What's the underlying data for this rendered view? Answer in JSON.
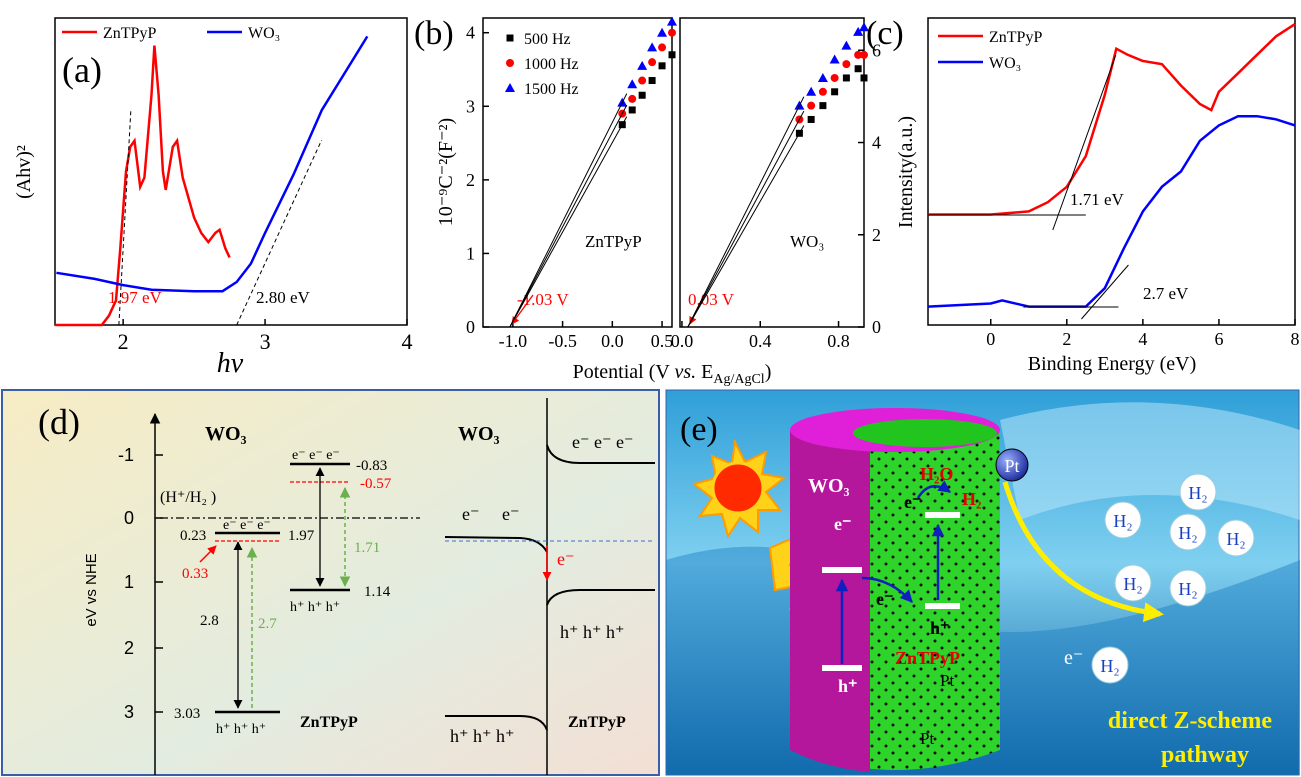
{
  "chart_data": [
    {
      "type": "line",
      "label": "(a)",
      "xlabel": "hv",
      "ylabel": "(Ahv)²",
      "xlim": [
        1.52,
        4.0
      ],
      "ylim": [
        0,
        1
      ],
      "xticks": [
        2,
        3,
        4
      ],
      "legend": "upper left",
      "series": [
        {
          "name": "ZnTPyP",
          "color": "#ff0000",
          "x": [
            1.52,
            1.85,
            1.9,
            1.95,
            1.98,
            2.02,
            2.05,
            2.08,
            2.12,
            2.15,
            2.2,
            2.22,
            2.25,
            2.28,
            2.3,
            2.35,
            2.38,
            2.42,
            2.5,
            2.55,
            2.6,
            2.65,
            2.68,
            2.72,
            2.75
          ],
          "values": [
            0.0,
            0.0,
            0.03,
            0.08,
            0.25,
            0.5,
            0.58,
            0.6,
            0.45,
            0.48,
            0.75,
            0.91,
            0.75,
            0.5,
            0.44,
            0.58,
            0.6,
            0.48,
            0.35,
            0.3,
            0.27,
            0.3,
            0.31,
            0.25,
            0.22
          ]
        },
        {
          "name": "WO₃",
          "color": "#0000ff",
          "x": [
            1.53,
            1.8,
            2.0,
            2.2,
            2.5,
            2.7,
            2.8,
            2.9,
            3.0,
            3.2,
            3.4,
            3.6,
            3.72
          ],
          "values": [
            0.17,
            0.15,
            0.13,
            0.115,
            0.11,
            0.11,
            0.14,
            0.2,
            0.3,
            0.49,
            0.7,
            0.85,
            0.94
          ]
        }
      ],
      "annotations": [
        {
          "value": 1.97,
          "label": "1.97 eV",
          "color": "#ff0000"
        },
        {
          "value": 2.8,
          "label": "2.80 eV",
          "color": "#000000"
        }
      ]
    },
    {
      "type": "scatter",
      "label": "(b)",
      "ylabel": "10⁻⁹C⁻²(F⁻²)",
      "xlabel_parts": [
        "Potential (V ",
        "vs.",
        " E",
        "Ag/AgCl",
        ")"
      ],
      "xlim": [
        -1.3,
        0.6
      ],
      "ylim": [
        0,
        4.2
      ],
      "xticks": [
        {
          "value": -1.0,
          "label": "-1.0"
        },
        -0.5,
        {
          "value": 0.0,
          "label": "0.0"
        },
        0.5
      ],
      "yticks": [
        0,
        1,
        2,
        3,
        4
      ],
      "yaxis_side": "left",
      "legend": "upper left",
      "series": [
        {
          "name": "500 Hz",
          "color": "#000000",
          "marker": "square",
          "x": [
            0.1,
            0.2,
            0.3,
            0.4,
            0.5,
            0.6
          ],
          "values": [
            2.75,
            2.95,
            3.15,
            3.35,
            3.55,
            3.7
          ]
        },
        {
          "name": "1000 Hz",
          "color": "#ff0000",
          "marker": "circle",
          "x": [
            0.1,
            0.2,
            0.3,
            0.4,
            0.5,
            0.6
          ],
          "values": [
            2.9,
            3.1,
            3.35,
            3.6,
            3.8,
            4.0
          ]
        },
        {
          "name": "1500 Hz",
          "color": "#0000ff",
          "marker": "triangle",
          "x": [
            0.1,
            0.2,
            0.3,
            0.4,
            0.5,
            0.6
          ],
          "values": [
            3.05,
            3.3,
            3.55,
            3.8,
            4.0,
            4.15
          ]
        }
      ],
      "annotations": [
        {
          "value": -1.03,
          "label": "-1.03 V",
          "color": "#ff0000"
        },
        {
          "label": "ZnTPyP",
          "color": "#000000"
        }
      ]
    },
    {
      "type": "scatter",
      "xlim": [
        -0.01,
        0.93
      ],
      "ylim": [
        0,
        6.7
      ],
      "xticks": [
        {
          "value": 0.0,
          "label": "0.0"
        },
        0.4,
        0.8
      ],
      "yticks": [
        0,
        2,
        4,
        6
      ],
      "yaxis_side": "right",
      "series": [
        {
          "color": "#000000",
          "marker": "square",
          "x": [
            0.6,
            0.66,
            0.72,
            0.78,
            0.84,
            0.9,
            0.93
          ],
          "values": [
            4.2,
            4.5,
            4.8,
            5.1,
            5.4,
            5.6,
            5.4
          ]
        },
        {
          "color": "#ff0000",
          "marker": "circle",
          "x": [
            0.6,
            0.66,
            0.72,
            0.78,
            0.84,
            0.9,
            0.93
          ],
          "values": [
            4.5,
            4.8,
            5.1,
            5.4,
            5.7,
            5.9,
            5.9
          ]
        },
        {
          "color": "#0000ff",
          "marker": "triangle",
          "x": [
            0.6,
            0.66,
            0.72,
            0.78,
            0.84,
            0.9,
            0.93
          ],
          "values": [
            4.8,
            5.1,
            5.4,
            5.8,
            6.1,
            6.4,
            6.5
          ]
        }
      ],
      "annotations": [
        {
          "value": 0.03,
          "label": "0.03 V",
          "color": "#ff0000"
        },
        {
          "label": "WO₃",
          "color": "#000000"
        }
      ]
    },
    {
      "type": "line",
      "label": "(c)",
      "xlabel": "Binding Energy (eV)",
      "ylabel": "Intensity(a.u.)",
      "xlim": [
        -1.65,
        8.0
      ],
      "ylim": [
        0,
        1
      ],
      "xticks": [
        0,
        2,
        4,
        6,
        8
      ],
      "legend": "upper left",
      "series": [
        {
          "name": "ZnTPyP",
          "color": "#ff0000",
          "x": [
            -1.65,
            0,
            1.0,
            1.5,
            2.0,
            2.5,
            3.0,
            3.3,
            3.6,
            4.0,
            4.5,
            5.0,
            5.5,
            5.8,
            6.0,
            6.5,
            7.0,
            7.5,
            8.0
          ],
          "values": [
            0.36,
            0.36,
            0.37,
            0.4,
            0.45,
            0.55,
            0.75,
            0.9,
            0.88,
            0.86,
            0.85,
            0.78,
            0.72,
            0.7,
            0.76,
            0.82,
            0.88,
            0.94,
            0.98
          ]
        },
        {
          "name": "WO₃",
          "color": "#0000ff",
          "x": [
            -1.65,
            0,
            0.3,
            1.0,
            2.5,
            3.0,
            3.5,
            4.0,
            4.5,
            5.0,
            5.5,
            6.0,
            6.5,
            7.0,
            7.5,
            8.0
          ],
          "values": [
            0.06,
            0.07,
            0.08,
            0.06,
            0.06,
            0.12,
            0.25,
            0.37,
            0.45,
            0.5,
            0.6,
            0.65,
            0.68,
            0.68,
            0.67,
            0.65
          ]
        }
      ],
      "annotations": [
        {
          "value": 1.71,
          "label": "1.71 eV",
          "color": "#000000"
        },
        {
          "value": 2.7,
          "label": "2.7 eV",
          "color": "#000000"
        }
      ]
    }
  ],
  "panel_d": {
    "label": "(d)",
    "axis_label": "eV vs NHE",
    "axis_ticks": [
      "-1",
      "0",
      "1",
      "2",
      "3"
    ],
    "reference": "(H⁺/H₂ )",
    "wo3": {
      "name": "WO₃",
      "cb": "0.23",
      "cb_shift": "0.33",
      "gap": "2.8",
      "optical_gap": "2.7",
      "vb": "3.03",
      "electrons": "e⁻ e⁻ e⁻",
      "holes": "h⁺ h⁺ h⁺"
    },
    "zntpyp": {
      "name": "ZnTPyP",
      "lumo": "-0.83",
      "lumo_shift": "-0.57",
      "gap": "1.97",
      "optical_gap": "1.71",
      "homo": "1.14",
      "electrons": "e⁻ e⁻ e⁻",
      "holes": "h⁺ h⁺ h⁺"
    },
    "band": {
      "wo3": "WO₃",
      "zntpyp": "ZnTPyP",
      "wo3_electrons": [
        "e⁻",
        "e⁻"
      ],
      "zntpyp_electrons": "e⁻ e⁻ e⁻",
      "transfer": "e⁻",
      "wo3_holes": "h⁺ h⁺ h⁺",
      "zntpyp_holes": "h⁺ h⁺ h⁺"
    }
  },
  "panel_e": {
    "label": "(e)",
    "wo3": "WO₃",
    "zntpyp": "ZnTPyP",
    "pt": [
      "Pt",
      "Pt",
      "Pt"
    ],
    "h2o": "H₂O",
    "h2": "H₂",
    "electrons": [
      "e⁻",
      "e⁻",
      "e⁻",
      "e⁻"
    ],
    "holes": [
      "h⁺",
      "h⁺"
    ],
    "products": [
      "H₂",
      "H₂",
      "H₂",
      "H₂",
      "H₂",
      "H₂",
      "H₂"
    ],
    "pathway": [
      "direct Z-scheme",
      "pathway"
    ]
  }
}
